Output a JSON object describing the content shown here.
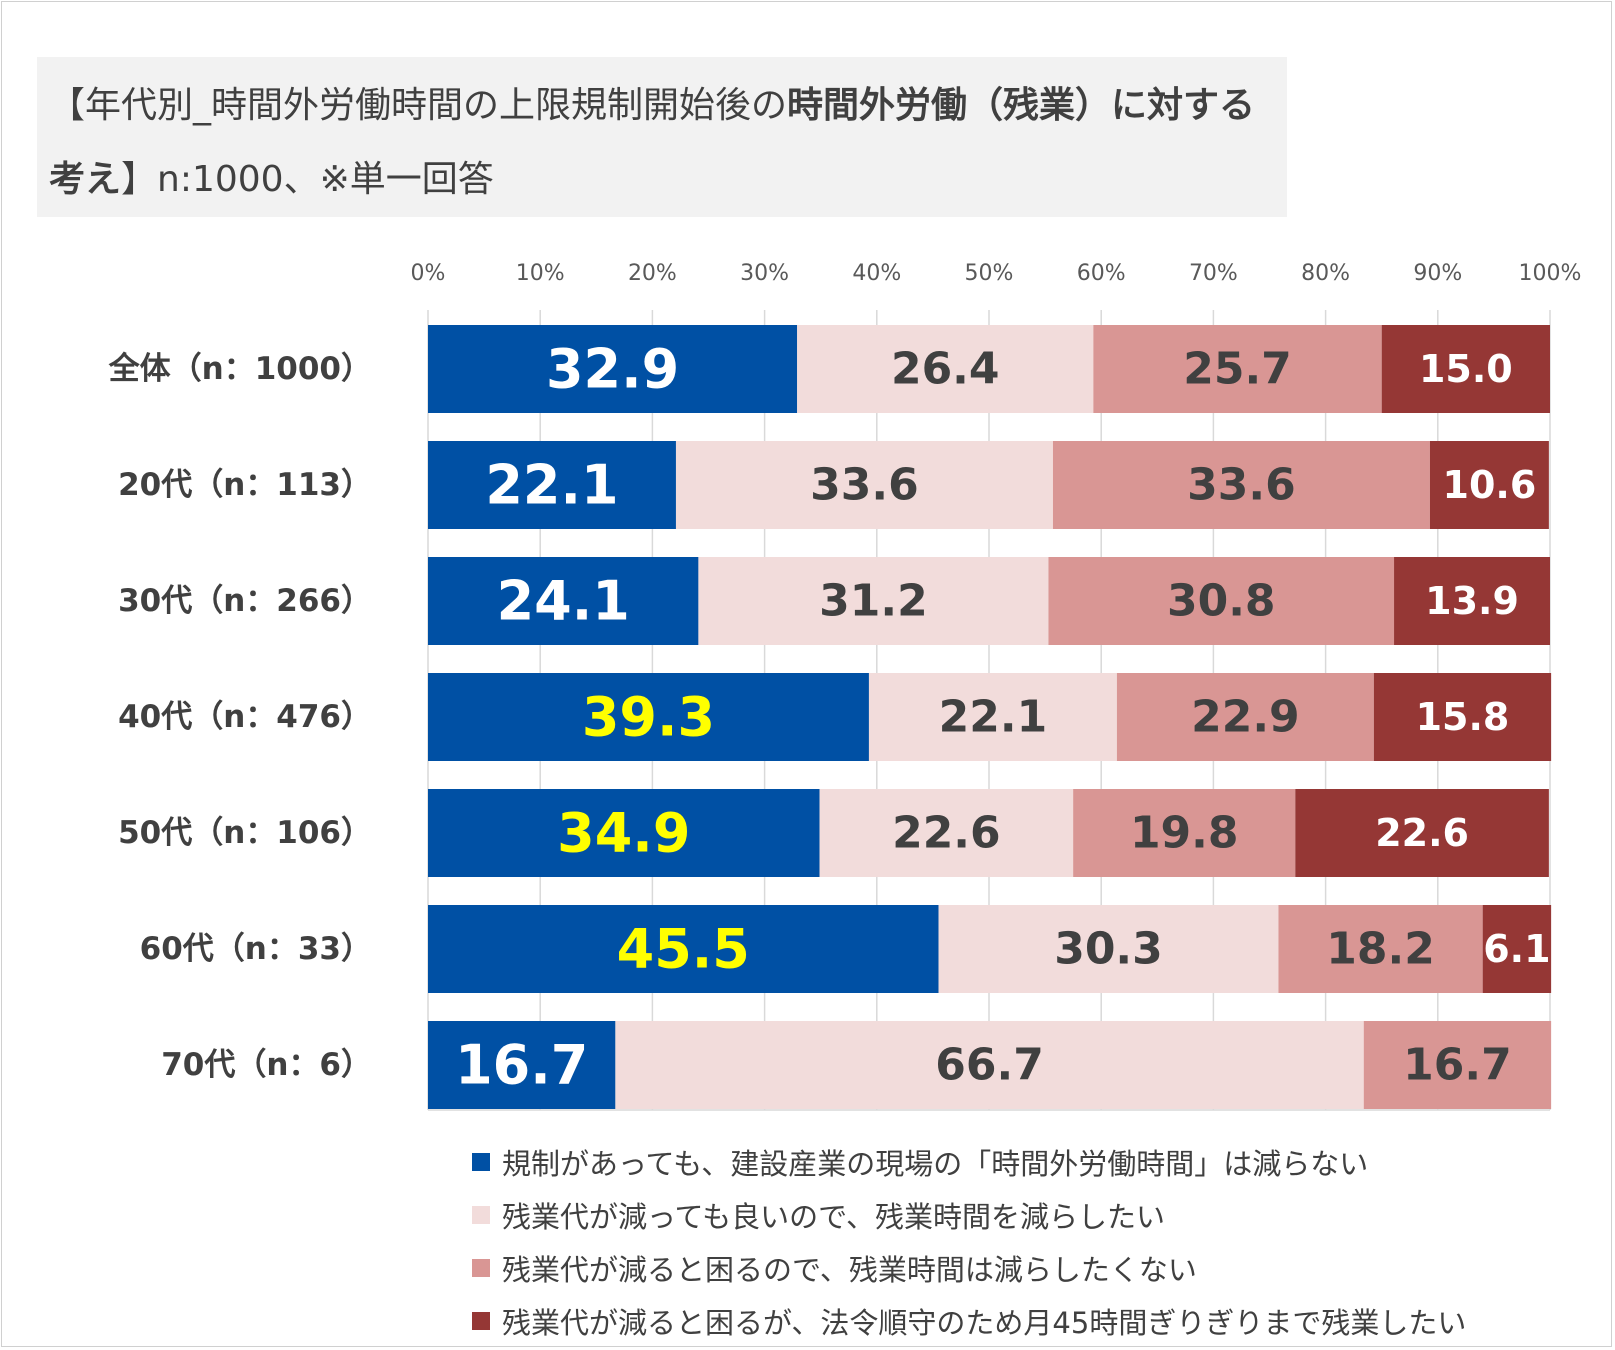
{
  "title": {
    "prefix": "【年代別_時間外労働時間の上限規制開始後の",
    "bold": "時間外労働（残業）に対する考え",
    "suffix": "】n:1000、※単一回答"
  },
  "chart_data": {
    "type": "bar",
    "orientation": "horizontal",
    "stacked": true,
    "percent": true,
    "categories": [
      "全体（n：1000）",
      "20代（n：113）",
      "30代（n：266）",
      "40代（n：476）",
      "50代（n：106）",
      "60代（n：33）",
      "70代（n：6）"
    ],
    "x_ticks": [
      "0%",
      "10%",
      "20%",
      "30%",
      "40%",
      "50%",
      "60%",
      "70%",
      "80%",
      "90%",
      "100%"
    ],
    "xlim": [
      0,
      100
    ],
    "grid": true,
    "legend_position": "bottom",
    "series": [
      {
        "name": "規制があっても、建設産業の現場の「時間外労働時間」は減らない",
        "color": "#0050a4",
        "label_color": "#ffffff",
        "values": [
          32.9,
          22.1,
          24.1,
          39.3,
          34.9,
          45.5,
          16.7
        ],
        "labels": [
          "32.9",
          "22.1",
          "24.1",
          "39.3",
          "34.9",
          "45.5",
          "16.7"
        ]
      },
      {
        "name": "残業代が減っても良いので、残業時間を減らしたい",
        "color": "#f2dcdb",
        "label_color": "#404040",
        "values": [
          26.4,
          33.6,
          31.2,
          22.1,
          22.6,
          30.3,
          66.7
        ],
        "labels": [
          "26.4",
          "33.6",
          "31.2",
          "22.1",
          "22.6",
          "30.3",
          "66.7"
        ]
      },
      {
        "name": "残業代が減ると困るので、残業時間は減らしたくない",
        "color": "#d99694",
        "label_color": "#404040",
        "values": [
          25.7,
          33.6,
          30.8,
          22.9,
          19.8,
          18.2,
          16.7
        ],
        "labels": [
          "25.7",
          "33.6",
          "30.8",
          "22.9",
          "19.8",
          "18.2",
          "16.7"
        ]
      },
      {
        "name": "残業代が減ると困るが、法令順守のため月45時間ぎりぎりまで残業したい",
        "color": "#953735",
        "label_color": "#ffffff",
        "values": [
          15.0,
          10.6,
          13.9,
          15.8,
          22.6,
          6.1,
          0
        ],
        "labels": [
          "15.0",
          "10.6",
          "13.9",
          "15.8",
          "22.6",
          "6.1",
          ""
        ]
      }
    ],
    "highlight_label_color": "#ffff00",
    "highlighted_labels": [
      "39.3",
      "34.9",
      "45.5"
    ]
  }
}
